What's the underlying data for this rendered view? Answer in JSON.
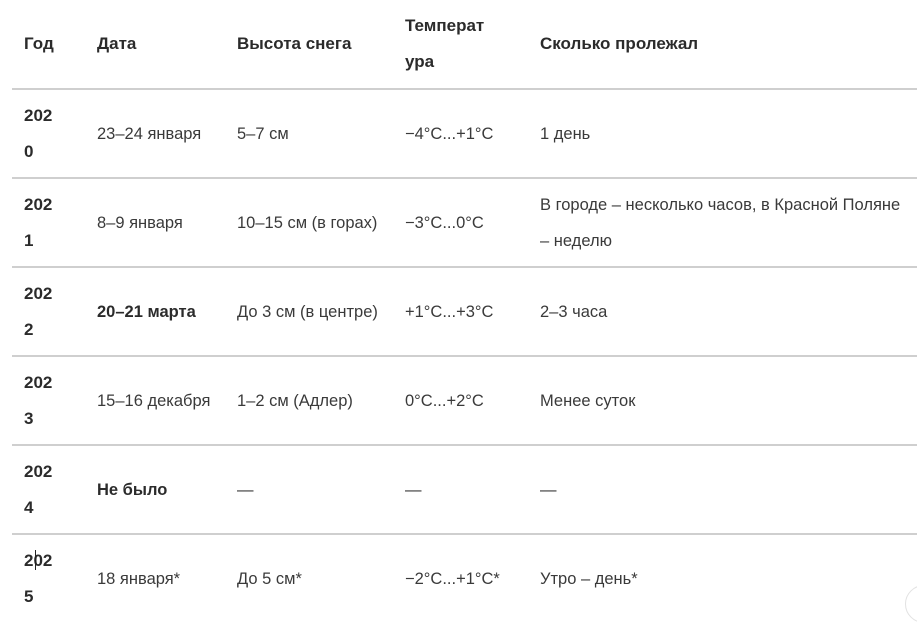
{
  "table": {
    "headers": [
      "Год",
      "Дата",
      "Высота снега",
      "Температура",
      "Сколько пролежал"
    ],
    "rows": [
      {
        "year": "2020",
        "date": "23–24 января",
        "date_bold": false,
        "snow": "5–7 см",
        "temp": "−4°C...+1°C",
        "duration": "1 день"
      },
      {
        "year": "2021",
        "date": "8–9 января",
        "date_bold": false,
        "snow": "10–15 см (в горах)",
        "temp": "−3°C...0°C",
        "duration": "В городе – несколько часов, в Красной Поляне – неделю"
      },
      {
        "year": "2022",
        "date": "20–21 марта",
        "date_bold": true,
        "snow": "До 3 см (в центре)",
        "temp": "+1°C...+3°C",
        "duration": "2–3 часа"
      },
      {
        "year": "2023",
        "date": "15–16 декабря",
        "date_bold": false,
        "snow": "1–2 см (Адлер)",
        "temp": "0°C...+2°C",
        "duration": "Менее суток"
      },
      {
        "year": "2024",
        "date": "Не было",
        "date_bold": true,
        "snow": "—",
        "temp": "—",
        "duration": "—"
      },
      {
        "year": "2025",
        "date": "18 января*",
        "date_bold": false,
        "snow": "До 5 см*",
        "temp": "−2°C...+1°C*",
        "duration": "Утро – день*"
      }
    ]
  }
}
